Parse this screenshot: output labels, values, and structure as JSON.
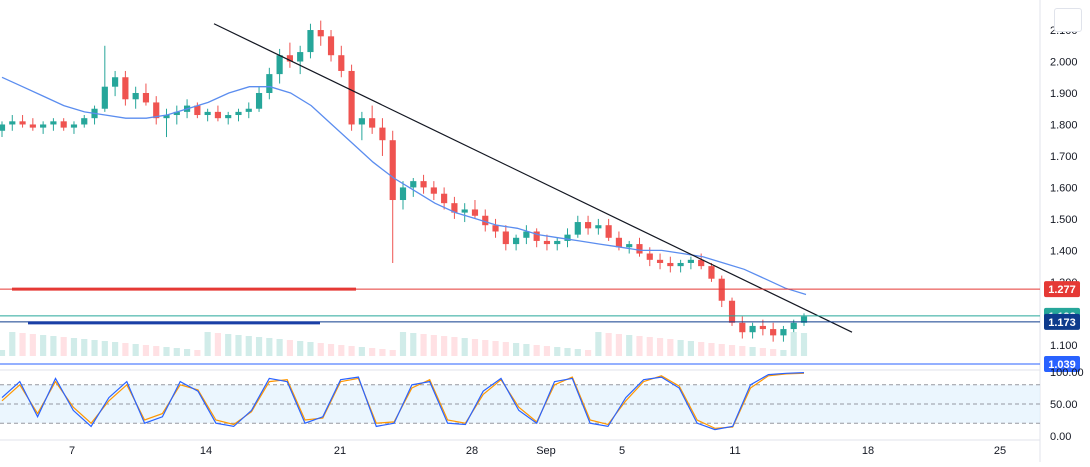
{
  "chart_data": {
    "type": "candlestick",
    "price_axis": {
      "ticks": [
        "2.100",
        "2.000",
        "1.900",
        "1.800",
        "1.700",
        "1.600",
        "1.500",
        "1.400",
        "1.300",
        "1.100"
      ],
      "range": [
        1.02,
        2.17
      ]
    },
    "time_axis": {
      "ticks": [
        "7",
        "14",
        "21",
        "28",
        "Sep",
        "5",
        "11",
        "18",
        "25"
      ]
    },
    "ohlc": [
      [
        1.78,
        1.81,
        1.76,
        1.8
      ],
      [
        1.8,
        1.83,
        1.78,
        1.81
      ],
      [
        1.81,
        1.83,
        1.79,
        1.8
      ],
      [
        1.8,
        1.82,
        1.78,
        1.79
      ],
      [
        1.79,
        1.81,
        1.77,
        1.8
      ],
      [
        1.8,
        1.82,
        1.78,
        1.81
      ],
      [
        1.81,
        1.82,
        1.78,
        1.79
      ],
      [
        1.79,
        1.81,
        1.77,
        1.8
      ],
      [
        1.8,
        1.83,
        1.79,
        1.82
      ],
      [
        1.82,
        1.86,
        1.8,
        1.85
      ],
      [
        1.85,
        2.05,
        1.84,
        1.92
      ],
      [
        1.92,
        1.97,
        1.89,
        1.95
      ],
      [
        1.95,
        1.97,
        1.86,
        1.88
      ],
      [
        1.88,
        1.92,
        1.85,
        1.9
      ],
      [
        1.9,
        1.93,
        1.86,
        1.87
      ],
      [
        1.87,
        1.89,
        1.8,
        1.82
      ],
      [
        1.82,
        1.85,
        1.76,
        1.83
      ],
      [
        1.83,
        1.86,
        1.8,
        1.84
      ],
      [
        1.84,
        1.88,
        1.82,
        1.86
      ],
      [
        1.86,
        1.87,
        1.82,
        1.83
      ],
      [
        1.83,
        1.85,
        1.81,
        1.84
      ],
      [
        1.84,
        1.86,
        1.81,
        1.82
      ],
      [
        1.82,
        1.84,
        1.8,
        1.83
      ],
      [
        1.83,
        1.85,
        1.81,
        1.84
      ],
      [
        1.84,
        1.87,
        1.82,
        1.85
      ],
      [
        1.85,
        1.92,
        1.84,
        1.9
      ],
      [
        1.9,
        1.98,
        1.88,
        1.96
      ],
      [
        1.96,
        2.04,
        1.93,
        2.02
      ],
      [
        2.02,
        2.06,
        1.98,
        2.0
      ],
      [
        2.0,
        2.05,
        1.96,
        2.03
      ],
      [
        2.03,
        2.12,
        2.01,
        2.1
      ],
      [
        2.1,
        2.13,
        2.05,
        2.08
      ],
      [
        2.08,
        2.1,
        2.0,
        2.02
      ],
      [
        2.02,
        2.05,
        1.95,
        1.97
      ],
      [
        1.97,
        1.99,
        1.78,
        1.8
      ],
      [
        1.8,
        1.84,
        1.75,
        1.82
      ],
      [
        1.82,
        1.86,
        1.77,
        1.79
      ],
      [
        1.79,
        1.82,
        1.7,
        1.75
      ],
      [
        1.75,
        1.78,
        1.36,
        1.56
      ],
      [
        1.56,
        1.62,
        1.53,
        1.6
      ],
      [
        1.6,
        1.63,
        1.57,
        1.62
      ],
      [
        1.62,
        1.64,
        1.58,
        1.6
      ],
      [
        1.6,
        1.62,
        1.56,
        1.58
      ],
      [
        1.58,
        1.6,
        1.53,
        1.55
      ],
      [
        1.55,
        1.57,
        1.5,
        1.52
      ],
      [
        1.52,
        1.55,
        1.49,
        1.53
      ],
      [
        1.53,
        1.56,
        1.5,
        1.51
      ],
      [
        1.51,
        1.53,
        1.46,
        1.48
      ],
      [
        1.48,
        1.5,
        1.44,
        1.46
      ],
      [
        1.46,
        1.48,
        1.4,
        1.42
      ],
      [
        1.42,
        1.45,
        1.4,
        1.44
      ],
      [
        1.44,
        1.48,
        1.42,
        1.46
      ],
      [
        1.46,
        1.47,
        1.41,
        1.43
      ],
      [
        1.43,
        1.45,
        1.4,
        1.42
      ],
      [
        1.42,
        1.44,
        1.4,
        1.43
      ],
      [
        1.43,
        1.47,
        1.41,
        1.45
      ],
      [
        1.45,
        1.51,
        1.44,
        1.49
      ],
      [
        1.49,
        1.51,
        1.45,
        1.47
      ],
      [
        1.47,
        1.5,
        1.45,
        1.48
      ],
      [
        1.48,
        1.5,
        1.43,
        1.44
      ],
      [
        1.44,
        1.46,
        1.4,
        1.41
      ],
      [
        1.41,
        1.43,
        1.39,
        1.42
      ],
      [
        1.42,
        1.44,
        1.38,
        1.39
      ],
      [
        1.39,
        1.41,
        1.35,
        1.37
      ],
      [
        1.37,
        1.39,
        1.34,
        1.36
      ],
      [
        1.36,
        1.38,
        1.33,
        1.35
      ],
      [
        1.35,
        1.37,
        1.33,
        1.36
      ],
      [
        1.36,
        1.38,
        1.34,
        1.37
      ],
      [
        1.37,
        1.39,
        1.34,
        1.35
      ],
      [
        1.35,
        1.36,
        1.3,
        1.31
      ],
      [
        1.31,
        1.32,
        1.22,
        1.24
      ],
      [
        1.24,
        1.25,
        1.16,
        1.17
      ],
      [
        1.17,
        1.19,
        1.12,
        1.14
      ],
      [
        1.14,
        1.17,
        1.12,
        1.16
      ],
      [
        1.16,
        1.18,
        1.13,
        1.15
      ],
      [
        1.15,
        1.17,
        1.11,
        1.13
      ],
      [
        1.13,
        1.16,
        1.11,
        1.15
      ],
      [
        1.15,
        1.18,
        1.14,
        1.17
      ],
      [
        1.17,
        1.2,
        1.16,
        1.19
      ]
    ],
    "moving_average": [
      1.95,
      1.92,
      1.89,
      1.86,
      1.84,
      1.83,
      1.82,
      1.82,
      1.83,
      1.85,
      1.87,
      1.9,
      1.92,
      1.92,
      1.9,
      1.86,
      1.8,
      1.74,
      1.68,
      1.63,
      1.59,
      1.55,
      1.52,
      1.5,
      1.48,
      1.47,
      1.45,
      1.44,
      1.43,
      1.42,
      1.41,
      1.4,
      1.4,
      1.39,
      1.38,
      1.36,
      1.34,
      1.31,
      1.28,
      1.26
    ],
    "trendline": [
      [
        2.12
      ],
      [
        1.14
      ]
    ],
    "horizontal_levels": [
      {
        "value": 1.277,
        "label": "1.277",
        "color": "#e53935"
      },
      {
        "value": 1.192,
        "label": "1.192",
        "color": "#26a69a"
      },
      {
        "value": 1.173,
        "label": "1.173",
        "color": "#0d3b8c"
      },
      {
        "value": 1.039,
        "label": "1.039",
        "color": "#2962ff"
      }
    ],
    "oscillator": {
      "ticks": [
        "100.00",
        "50.00",
        "0.00"
      ],
      "upper_band": 80,
      "mid_band": 50,
      "lower_band": 20,
      "k": [
        60,
        85,
        30,
        90,
        40,
        15,
        60,
        85,
        20,
        30,
        85,
        70,
        20,
        15,
        40,
        90,
        85,
        20,
        30,
        88,
        92,
        15,
        20,
        80,
        85,
        20,
        18,
        70,
        90,
        40,
        20,
        85,
        90,
        20,
        15,
        60,
        88,
        92,
        75,
        20,
        10,
        15,
        80,
        96,
        98,
        99
      ],
      "d": [
        55,
        80,
        35,
        85,
        45,
        20,
        55,
        80,
        25,
        35,
        80,
        72,
        25,
        18,
        38,
        85,
        88,
        25,
        28,
        85,
        90,
        20,
        22,
        75,
        88,
        25,
        20,
        65,
        88,
        45,
        22,
        80,
        92,
        25,
        18,
        55,
        85,
        94,
        78,
        25,
        12,
        14,
        75,
        94,
        97,
        98
      ]
    },
    "colors": {
      "up": "#26a69a",
      "down": "#ef5350",
      "ma": "#5b8def",
      "trend": "#131722",
      "k": "#2962ff",
      "d": "#ff9800"
    }
  }
}
